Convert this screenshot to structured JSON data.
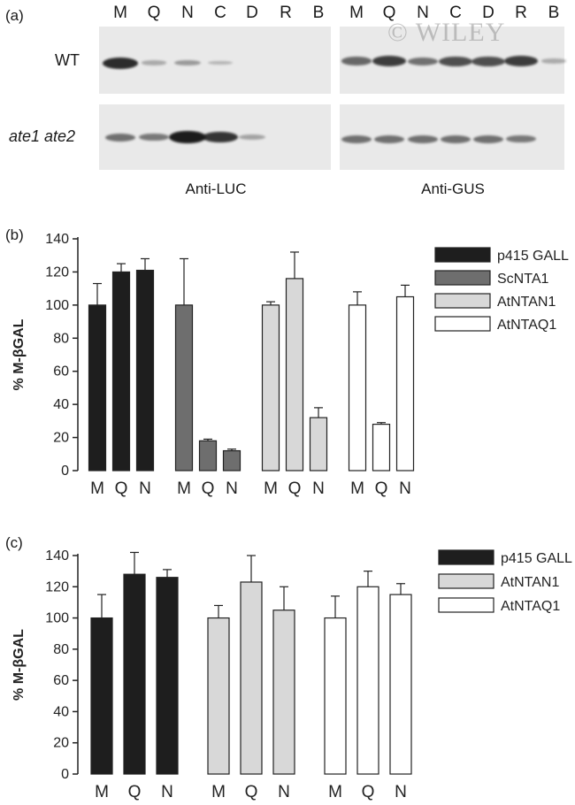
{
  "panel_a": {
    "label": "(a)",
    "lanes_left": [
      "M",
      "Q",
      "N",
      "C",
      "D",
      "R",
      "B"
    ],
    "lanes_right": [
      "M",
      "Q",
      "N",
      "C",
      "D",
      "R",
      "B"
    ],
    "row_wt": "WT",
    "row_mut": "ate1 ate2",
    "caption_left": "Anti-LUC",
    "caption_right": "Anti-GUS",
    "watermark": "© WILEY",
    "bands_wt_luc": [
      0.9,
      0.15,
      0.25,
      0.08,
      0,
      0,
      0
    ],
    "bands_wt_gus": [
      0.55,
      0.8,
      0.5,
      0.7,
      0.7,
      0.8,
      0.15
    ],
    "bands_mut_luc": [
      0.5,
      0.45,
      1.0,
      0.85,
      0.2,
      0,
      0
    ],
    "bands_mut_gus": [
      0.5,
      0.5,
      0.5,
      0.5,
      0.5,
      0.45,
      0
    ]
  },
  "chart_data": [
    {
      "panel": "(b)",
      "type": "bar",
      "ylabel": "% M-βGAL",
      "ylim": [
        0,
        140
      ],
      "yticks": [
        "0",
        "20",
        "40",
        "60",
        "80",
        "100",
        "120",
        "140"
      ],
      "categories": [
        "M",
        "Q",
        "N"
      ],
      "series": [
        {
          "name": "p415 GALL",
          "values": [
            100,
            120,
            121
          ],
          "errors": [
            13,
            5,
            7
          ],
          "color": "#1e1e1e"
        },
        {
          "name": "ScNTA1",
          "values": [
            100,
            18,
            12
          ],
          "errors": [
            28,
            1,
            1
          ],
          "color": "#6e6e6e"
        },
        {
          "name": "AtNTAN1",
          "values": [
            100,
            116,
            32
          ],
          "errors": [
            2,
            16,
            6
          ],
          "color": "#d8d8d8"
        },
        {
          "name": "AtNTAQ1",
          "values": [
            100,
            28,
            105
          ],
          "errors": [
            8,
            1,
            7
          ],
          "color": "#ffffff"
        }
      ]
    },
    {
      "panel": "(c)",
      "type": "bar",
      "ylabel": "% M-βGAL",
      "ylim": [
        0,
        140
      ],
      "yticks": [
        "0",
        "20",
        "40",
        "60",
        "80",
        "100",
        "120",
        "140"
      ],
      "categories": [
        "M",
        "Q",
        "N"
      ],
      "series": [
        {
          "name": "p415 GALL",
          "values": [
            100,
            128,
            126
          ],
          "errors": [
            15,
            14,
            5
          ],
          "color": "#1e1e1e"
        },
        {
          "name": "AtNTAN1",
          "values": [
            100,
            123,
            105
          ],
          "errors": [
            8,
            17,
            15
          ],
          "color": "#d8d8d8"
        },
        {
          "name": "AtNTAQ1",
          "values": [
            100,
            120,
            115
          ],
          "errors": [
            14,
            10,
            7
          ],
          "color": "#ffffff"
        }
      ]
    }
  ]
}
